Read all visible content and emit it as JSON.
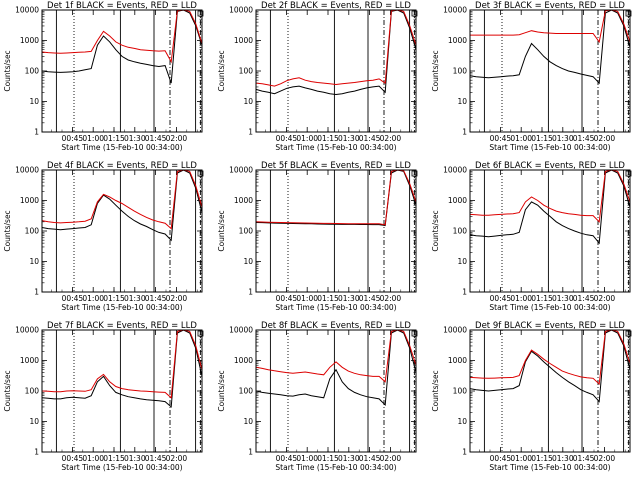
{
  "figure": {
    "x_tick_labels": [
      "00:45",
      "01:00",
      "01:15",
      "01:30",
      "01:45",
      "02:00"
    ],
    "y_tick_labels": [
      "10000",
      "1000",
      "100",
      "10",
      "1"
    ],
    "xlabel": "Start Time (15-Feb-10 00:34:00)",
    "ylabel": "Counts/sec",
    "colors": {
      "events": "#000000",
      "lld": "#dd0000",
      "frame": "#000000"
    }
  },
  "chart_data": [
    {
      "type": "line",
      "title": "Det 1f BLACK = Events, RED = LLD",
      "scale": "log",
      "ylim": [
        1,
        10000
      ],
      "xlim": [
        "00:34",
        "02:14"
      ],
      "series": [
        {
          "name": "Events",
          "color": "black",
          "values": [
            100,
            95,
            92,
            90,
            92,
            95,
            100,
            110,
            120,
            700,
            1400,
            900,
            500,
            300,
            230,
            200,
            180,
            165,
            150,
            140,
            150,
            40,
            9000,
            10000,
            8000,
            3000,
            700
          ]
        },
        {
          "name": "LLD",
          "color": "red",
          "values": [
            420,
            400,
            390,
            380,
            390,
            400,
            410,
            420,
            440,
            1000,
            2000,
            1400,
            900,
            700,
            600,
            550,
            500,
            480,
            460,
            450,
            460,
            200,
            9500,
            10000,
            9000,
            3500,
            800
          ]
        }
      ]
    },
    {
      "type": "line",
      "title": "Det 2f BLACK = Events, RED = LLD",
      "scale": "log",
      "ylim": [
        1,
        10000
      ],
      "xlim": [
        "00:34",
        "02:14"
      ],
      "series": [
        {
          "name": "Events",
          "color": "black",
          "values": [
            25,
            22,
            20,
            18,
            22,
            27,
            30,
            32,
            28,
            25,
            22,
            20,
            18,
            17,
            18,
            20,
            22,
            25,
            28,
            30,
            32,
            20,
            9000,
            10000,
            8000,
            2500,
            500
          ]
        },
        {
          "name": "LLD",
          "color": "red",
          "values": [
            40,
            38,
            35,
            32,
            38,
            48,
            55,
            60,
            50,
            45,
            42,
            40,
            38,
            36,
            38,
            40,
            42,
            45,
            48,
            50,
            55,
            40,
            9500,
            10000,
            9000,
            3000,
            700
          ]
        }
      ]
    },
    {
      "type": "line",
      "title": "Det 3f BLACK = Events, RED = LLD",
      "scale": "log",
      "ylim": [
        1,
        10000
      ],
      "xlim": [
        "00:34",
        "02:14"
      ],
      "series": [
        {
          "name": "Events",
          "color": "black",
          "values": [
            70,
            65,
            62,
            60,
            62,
            65,
            68,
            70,
            75,
            300,
            800,
            500,
            300,
            200,
            150,
            120,
            100,
            90,
            80,
            72,
            65,
            40,
            8000,
            10000,
            8000,
            3000,
            600
          ]
        },
        {
          "name": "LLD",
          "color": "red",
          "values": [
            1500,
            1500,
            1500,
            1500,
            1500,
            1500,
            1500,
            1500,
            1550,
            1800,
            2100,
            1900,
            1800,
            1750,
            1700,
            1700,
            1700,
            1700,
            1700,
            1700,
            1700,
            900,
            9500,
            10000,
            9000,
            3500,
            900
          ]
        }
      ]
    },
    {
      "type": "line",
      "title": "Det 4f BLACK = Events, RED = LLD",
      "scale": "log",
      "ylim": [
        1,
        10000
      ],
      "xlim": [
        "00:34",
        "02:14"
      ],
      "series": [
        {
          "name": "Events",
          "color": "black",
          "values": [
            130,
            120,
            115,
            110,
            115,
            120,
            125,
            130,
            160,
            800,
            1500,
            1100,
            700,
            450,
            300,
            220,
            170,
            140,
            110,
            90,
            80,
            50,
            8000,
            10000,
            8000,
            2500,
            400
          ]
        },
        {
          "name": "LLD",
          "color": "red",
          "values": [
            220,
            200,
            190,
            185,
            190,
            195,
            200,
            210,
            250,
            900,
            1600,
            1300,
            1000,
            800,
            600,
            450,
            350,
            280,
            230,
            200,
            180,
            120,
            9000,
            10000,
            9000,
            3000,
            600
          ]
        }
      ]
    },
    {
      "type": "line",
      "title": "Det 5f BLACK = Events, RED = LLD",
      "scale": "log",
      "ylim": [
        1,
        10000
      ],
      "xlim": [
        "00:34",
        "02:14"
      ],
      "series": [
        {
          "name": "Events",
          "color": "black",
          "values": [
            190,
            188,
            185,
            182,
            180,
            178,
            176,
            175,
            173,
            172,
            170,
            168,
            167,
            166,
            165,
            164,
            164,
            163,
            163,
            162,
            162,
            150,
            8000,
            10000,
            9000,
            3000,
            700
          ]
        },
        {
          "name": "LLD",
          "color": "red",
          "values": [
            200,
            198,
            195,
            192,
            190,
            188,
            186,
            185,
            183,
            182,
            180,
            178,
            177,
            176,
            175,
            174,
            174,
            173,
            173,
            172,
            172,
            160,
            9000,
            10000,
            9500,
            3500,
            900
          ]
        }
      ]
    },
    {
      "type": "line",
      "title": "Det 6f BLACK = Events, RED = LLD",
      "scale": "log",
      "ylim": [
        1,
        10000
      ],
      "xlim": [
        "00:34",
        "02:14"
      ],
      "series": [
        {
          "name": "Events",
          "color": "black",
          "values": [
            75,
            70,
            68,
            65,
            68,
            72,
            75,
            78,
            90,
            500,
            900,
            700,
            450,
            300,
            200,
            150,
            120,
            100,
            85,
            75,
            70,
            40,
            8000,
            10000,
            8000,
            3000,
            600
          ]
        },
        {
          "name": "LLD",
          "color": "red",
          "values": [
            350,
            340,
            330,
            330,
            340,
            350,
            360,
            370,
            400,
            900,
            1300,
            1000,
            700,
            550,
            450,
            400,
            370,
            350,
            330,
            320,
            320,
            200,
            9000,
            10000,
            9000,
            3500,
            900
          ]
        }
      ]
    },
    {
      "type": "line",
      "title": "Det 7f BLACK = Events, RED = LLD",
      "scale": "log",
      "ylim": [
        1,
        10000
      ],
      "xlim": [
        "00:34",
        "02:14"
      ],
      "series": [
        {
          "name": "Events",
          "color": "black",
          "values": [
            60,
            58,
            55,
            55,
            60,
            62,
            60,
            58,
            70,
            200,
            300,
            150,
            90,
            75,
            65,
            60,
            55,
            52,
            50,
            48,
            45,
            30,
            8000,
            10000,
            8000,
            2500,
            300
          ]
        },
        {
          "name": "LLD",
          "color": "red",
          "values": [
            100,
            98,
            95,
            95,
            100,
            102,
            100,
            98,
            110,
            250,
            350,
            200,
            140,
            120,
            110,
            105,
            100,
            98,
            95,
            92,
            90,
            60,
            9000,
            10000,
            9000,
            3000,
            500
          ]
        }
      ]
    },
    {
      "type": "line",
      "title": "Det 8f BLACK = Events, RED = LLD",
      "scale": "log",
      "ylim": [
        1,
        10000
      ],
      "xlim": [
        "00:34",
        "02:14"
      ],
      "series": [
        {
          "name": "Events",
          "color": "black",
          "values": [
            100,
            90,
            85,
            80,
            75,
            70,
            68,
            75,
            80,
            70,
            65,
            60,
            250,
            500,
            200,
            120,
            90,
            75,
            65,
            60,
            55,
            35,
            8000,
            10000,
            8000,
            2500,
            400
          ]
        },
        {
          "name": "LLD",
          "color": "red",
          "values": [
            600,
            550,
            500,
            460,
            430,
            400,
            380,
            400,
            420,
            390,
            360,
            340,
            600,
            900,
            600,
            450,
            380,
            340,
            320,
            300,
            300,
            200,
            9000,
            10000,
            9000,
            3000,
            700
          ]
        }
      ]
    },
    {
      "type": "line",
      "title": "Det 9f BLACK = Events, RED = LLD",
      "scale": "log",
      "ylim": [
        1,
        10000
      ],
      "xlim": [
        "00:34",
        "02:14"
      ],
      "series": [
        {
          "name": "Events",
          "color": "black",
          "values": [
            120,
            110,
            105,
            100,
            105,
            110,
            115,
            120,
            150,
            900,
            2000,
            1400,
            900,
            600,
            400,
            280,
            200,
            150,
            110,
            90,
            75,
            45,
            8000,
            10000,
            8000,
            3000,
            500
          ]
        },
        {
          "name": "LLD",
          "color": "red",
          "values": [
            280,
            270,
            265,
            260,
            265,
            270,
            275,
            280,
            320,
            1000,
            2200,
            1600,
            1100,
            800,
            600,
            450,
            380,
            330,
            290,
            270,
            260,
            170,
            9000,
            10000,
            9000,
            3500,
            800
          ]
        }
      ]
    }
  ]
}
